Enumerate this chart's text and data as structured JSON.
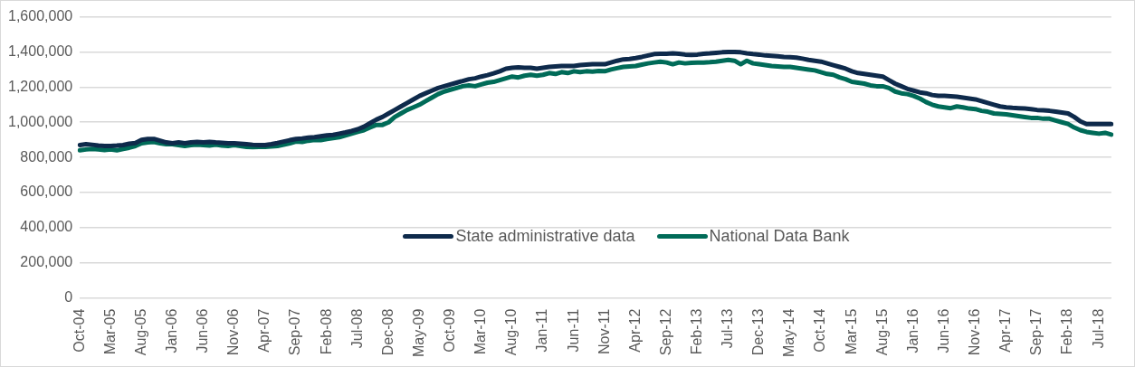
{
  "chart_data": {
    "type": "line",
    "categories": [
      "Oct-04",
      null,
      null,
      null,
      null,
      "Mar-05",
      null,
      null,
      null,
      null,
      "Aug-05",
      null,
      null,
      null,
      null,
      "Jan-06",
      null,
      null,
      null,
      null,
      "Jun-06",
      null,
      null,
      null,
      null,
      "Nov-06",
      null,
      null,
      null,
      null,
      "Apr-07",
      null,
      null,
      null,
      null,
      "Sep-07",
      null,
      null,
      null,
      null,
      "Feb-08",
      null,
      null,
      null,
      null,
      "Jul-08",
      null,
      null,
      null,
      null,
      "Dec-08",
      null,
      null,
      null,
      null,
      "May-09",
      null,
      null,
      null,
      null,
      "Oct-09",
      null,
      null,
      null,
      null,
      "Mar-10",
      null,
      null,
      null,
      null,
      "Aug-10",
      null,
      null,
      null,
      null,
      "Jan-11",
      null,
      null,
      null,
      null,
      "Jun-11",
      null,
      null,
      null,
      null,
      "Nov-11",
      null,
      null,
      null,
      null,
      "Apr-12",
      null,
      null,
      null,
      null,
      "Sep-12",
      null,
      null,
      null,
      null,
      "Feb-13",
      null,
      null,
      null,
      null,
      "Jul-13",
      null,
      null,
      null,
      null,
      "Dec-13",
      null,
      null,
      null,
      null,
      "May-14",
      null,
      null,
      null,
      null,
      "Oct-14",
      null,
      null,
      null,
      null,
      "Mar-15",
      null,
      null,
      null,
      null,
      "Aug-15",
      null,
      null,
      null,
      null,
      "Jan-16",
      null,
      null,
      null,
      null,
      "Jun-16",
      null,
      null,
      null,
      null,
      "Nov-16",
      null,
      null,
      null,
      null,
      "Apr-17",
      null,
      null,
      null,
      null,
      "Sep-17",
      null,
      null,
      null,
      null,
      "Feb-18",
      null,
      null,
      null,
      null,
      "Jul-18",
      null,
      null
    ],
    "series": [
      {
        "name": "State administrative data",
        "color": "#0e2a4b",
        "values": [
          870000,
          875000,
          872000,
          868000,
          865000,
          865000,
          867000,
          870000,
          878000,
          882000,
          900000,
          905000,
          905000,
          895000,
          885000,
          880000,
          885000,
          880000,
          885000,
          888000,
          885000,
          888000,
          885000,
          883000,
          880000,
          880000,
          878000,
          875000,
          872000,
          870000,
          870000,
          875000,
          882000,
          890000,
          898000,
          905000,
          908000,
          912000,
          915000,
          920000,
          925000,
          928000,
          935000,
          942000,
          950000,
          960000,
          975000,
          995000,
          1015000,
          1030000,
          1050000,
          1070000,
          1090000,
          1110000,
          1130000,
          1150000,
          1165000,
          1180000,
          1195000,
          1205000,
          1215000,
          1225000,
          1235000,
          1245000,
          1250000,
          1260000,
          1268000,
          1278000,
          1290000,
          1305000,
          1310000,
          1312000,
          1310000,
          1310000,
          1305000,
          1310000,
          1315000,
          1318000,
          1320000,
          1320000,
          1320000,
          1325000,
          1328000,
          1330000,
          1330000,
          1330000,
          1340000,
          1350000,
          1358000,
          1360000,
          1365000,
          1372000,
          1380000,
          1388000,
          1390000,
          1390000,
          1392000,
          1390000,
          1385000,
          1383000,
          1385000,
          1390000,
          1392000,
          1395000,
          1398000,
          1400000,
          1400000,
          1398000,
          1392000,
          1388000,
          1385000,
          1380000,
          1378000,
          1375000,
          1372000,
          1370000,
          1368000,
          1362000,
          1355000,
          1350000,
          1345000,
          1335000,
          1325000,
          1315000,
          1305000,
          1290000,
          1280000,
          1275000,
          1270000,
          1265000,
          1260000,
          1240000,
          1220000,
          1205000,
          1190000,
          1180000,
          1170000,
          1165000,
          1155000,
          1150000,
          1150000,
          1148000,
          1145000,
          1140000,
          1135000,
          1130000,
          1120000,
          1110000,
          1100000,
          1090000,
          1085000,
          1082000,
          1080000,
          1078000,
          1075000,
          1070000,
          1068000,
          1065000,
          1060000,
          1055000,
          1050000,
          1030000,
          1005000,
          990000,
          990000,
          990000,
          990000,
          990000
        ]
      },
      {
        "name": "National Data Bank",
        "color": "#006b58",
        "values": [
          840000,
          845000,
          848000,
          845000,
          842000,
          845000,
          840000,
          848000,
          855000,
          865000,
          880000,
          885000,
          888000,
          880000,
          875000,
          875000,
          870000,
          865000,
          870000,
          872000,
          870000,
          868000,
          872000,
          868000,
          865000,
          870000,
          865000,
          860000,
          858000,
          860000,
          860000,
          862000,
          865000,
          872000,
          880000,
          890000,
          888000,
          895000,
          900000,
          898000,
          905000,
          910000,
          915000,
          925000,
          935000,
          945000,
          955000,
          970000,
          985000,
          985000,
          1000000,
          1030000,
          1050000,
          1070000,
          1085000,
          1100000,
          1120000,
          1140000,
          1160000,
          1175000,
          1185000,
          1195000,
          1205000,
          1210000,
          1205000,
          1215000,
          1225000,
          1230000,
          1240000,
          1250000,
          1260000,
          1255000,
          1265000,
          1270000,
          1265000,
          1270000,
          1280000,
          1275000,
          1285000,
          1280000,
          1290000,
          1285000,
          1290000,
          1288000,
          1292000,
          1290000,
          1300000,
          1308000,
          1315000,
          1318000,
          1320000,
          1328000,
          1335000,
          1340000,
          1345000,
          1340000,
          1330000,
          1340000,
          1335000,
          1338000,
          1340000,
          1340000,
          1342000,
          1345000,
          1350000,
          1355000,
          1350000,
          1330000,
          1350000,
          1335000,
          1330000,
          1325000,
          1320000,
          1318000,
          1315000,
          1315000,
          1310000,
          1305000,
          1300000,
          1295000,
          1285000,
          1275000,
          1270000,
          1255000,
          1245000,
          1230000,
          1225000,
          1220000,
          1210000,
          1205000,
          1205000,
          1195000,
          1175000,
          1165000,
          1160000,
          1150000,
          1135000,
          1115000,
          1100000,
          1090000,
          1085000,
          1080000,
          1090000,
          1085000,
          1078000,
          1075000,
          1065000,
          1060000,
          1050000,
          1048000,
          1045000,
          1040000,
          1035000,
          1030000,
          1025000,
          1025000,
          1020000,
          1020000,
          1010000,
          1000000,
          990000,
          970000,
          955000,
          945000,
          940000,
          935000,
          940000,
          930000
        ]
      }
    ],
    "ylim": [
      0,
      1600000
    ],
    "yticks": [
      0,
      {
        "value": 200000,
        "label": "200,000"
      },
      {
        "value": 400000,
        "label": "400,000"
      },
      {
        "value": 600000,
        "label": "600,000"
      },
      {
        "value": 800000,
        "label": "800,000"
      },
      {
        "value": 1000000,
        "label": "1,000,000"
      },
      {
        "value": 1200000,
        "label": "1,200,000"
      },
      {
        "value": 1400000,
        "label": "1,400,000"
      },
      {
        "value": 1600000,
        "label": "1,600,000"
      }
    ],
    "grid": "y",
    "legend": "bottom",
    "marker": "none",
    "line_style": "solid"
  }
}
